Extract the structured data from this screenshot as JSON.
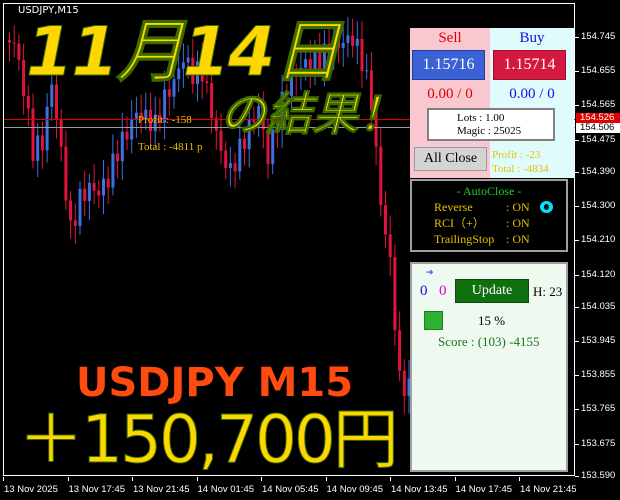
{
  "chart": {
    "symbol": "USDJPY,M15",
    "bull_color": "#3f6fe0",
    "bear_color": "#e0143c",
    "price_axis": [
      "154.745",
      "154.655",
      "154.565",
      "154.475",
      "154.390",
      "154.300",
      "154.210",
      "154.120",
      "154.035",
      "153.945",
      "153.855",
      "153.765",
      "153.675",
      "153.590"
    ],
    "price_axis_values": [
      154.745,
      154.655,
      154.565,
      154.475,
      154.39,
      154.3,
      154.21,
      154.12,
      154.035,
      153.945,
      153.855,
      153.765,
      153.675,
      153.59
    ],
    "time_axis": [
      "13 Nov 2025",
      "13 Nov 17:45",
      "13 Nov 21:45",
      "14 Nov 01:45",
      "14 Nov 05:45",
      "14 Nov 09:45",
      "14 Nov 13:45",
      "14 Nov 17:45",
      "14 Nov 21:45"
    ],
    "ask_tag": "154.526",
    "bid_tag": "154.506",
    "closes": [
      154.737,
      154.724,
      154.606,
      154.448,
      154.474,
      154.632,
      154.448,
      154.237,
      154.316,
      154.342,
      154.329,
      154.369,
      154.448,
      154.5,
      154.553,
      154.54,
      154.513,
      154.579,
      154.619,
      154.684,
      154.645,
      154.658,
      154.553,
      154.448,
      154.395,
      154.448,
      154.5,
      154.553,
      154.421,
      154.527,
      154.619,
      154.658,
      154.684,
      154.684,
      154.698,
      154.711,
      154.724,
      154.737,
      154.684,
      154.579,
      154.316,
      154.158,
      153.842,
      153.816
    ]
  },
  "overlay": {
    "date_title": "11月14日",
    "result_title": "の結果！",
    "pair_title": "USDJPY  M15",
    "profit_title": "＋150,700円",
    "profit_label": "Profit : -158",
    "total_label": "Total : -4811 p",
    "profit_label_right": "Profit : -23",
    "total_label_right": "Total : -4834"
  },
  "trade_panel": {
    "sell_label": "Sell",
    "buy_label": "Buy",
    "sell_price": "1.15716",
    "buy_price": "1.15714",
    "sell_pl": "0.00 / 0",
    "buy_pl": "0.00 / 0",
    "lots": "Lots    : 1.00",
    "magic": "Magic : 25025",
    "all_close": "All Close"
  },
  "autoclose_panel": {
    "title": "- AutoClose -",
    "rows": [
      {
        "label": "Reverse",
        "value": ": ON"
      },
      {
        "label": "RCI（+）",
        "value": ": ON"
      },
      {
        "label": "TrailingStop",
        "value": ": ON"
      }
    ],
    "indicator_color": "#00e5ff"
  },
  "score_panel": {
    "count_blue": "0",
    "count_magenta": "0",
    "update": "Update",
    "hour": "H: 23",
    "percent": "15 %",
    "score": "Score : (103) -4155"
  }
}
